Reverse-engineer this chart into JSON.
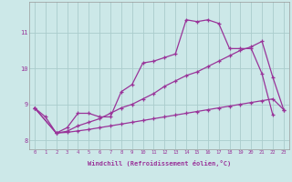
{
  "xlabel": "Windchill (Refroidissement éolien,°C)",
  "background_color": "#cce8e8",
  "grid_color": "#aacccc",
  "line_color": "#993399",
  "xlim": [
    -0.5,
    23.5
  ],
  "ylim": [
    7.75,
    11.85
  ],
  "yticks": [
    8,
    9,
    10,
    11
  ],
  "xticks": [
    0,
    1,
    2,
    3,
    4,
    5,
    6,
    7,
    8,
    9,
    10,
    11,
    12,
    13,
    14,
    15,
    16,
    17,
    18,
    19,
    20,
    21,
    22,
    23
  ],
  "series1": {
    "x": [
      0,
      1,
      2,
      3,
      4,
      5,
      6,
      7,
      8,
      9,
      10,
      11,
      12,
      13,
      14,
      15,
      16,
      17,
      18,
      19,
      20,
      21,
      22
    ],
    "y": [
      8.9,
      8.65,
      8.2,
      8.35,
      8.75,
      8.75,
      8.65,
      8.65,
      9.35,
      9.55,
      10.15,
      10.2,
      10.3,
      10.4,
      11.35,
      11.3,
      11.35,
      11.25,
      10.55,
      10.55,
      10.55,
      9.85,
      8.7
    ]
  },
  "series2": {
    "x": [
      0,
      2,
      3,
      4,
      5,
      6,
      7,
      8,
      9,
      10,
      11,
      12,
      13,
      14,
      15,
      16,
      17,
      18,
      19,
      20,
      21,
      22,
      23
    ],
    "y": [
      8.9,
      8.2,
      8.25,
      8.4,
      8.5,
      8.6,
      8.75,
      8.9,
      9.0,
      9.15,
      9.3,
      9.5,
      9.65,
      9.8,
      9.9,
      10.05,
      10.2,
      10.35,
      10.5,
      10.6,
      10.75,
      9.75,
      8.85
    ]
  },
  "series3": {
    "x": [
      0,
      2,
      3,
      4,
      5,
      6,
      7,
      8,
      9,
      10,
      11,
      12,
      13,
      14,
      15,
      16,
      17,
      18,
      19,
      20,
      21,
      22,
      23
    ],
    "y": [
      8.9,
      8.2,
      8.22,
      8.26,
      8.3,
      8.35,
      8.4,
      8.45,
      8.5,
      8.55,
      8.6,
      8.65,
      8.7,
      8.75,
      8.8,
      8.85,
      8.9,
      8.95,
      9.0,
      9.05,
      9.1,
      9.15,
      8.85
    ]
  }
}
